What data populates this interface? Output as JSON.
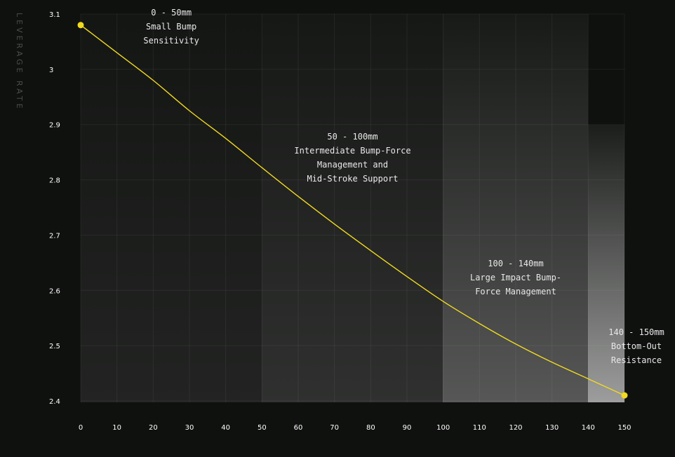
{
  "chart_data": {
    "type": "line",
    "title": "",
    "xlabel": "",
    "ylabel": "LEVERAGE RATE",
    "xlim": [
      0,
      150
    ],
    "ylim": [
      2.4,
      3.1
    ],
    "x_ticks": [
      "0",
      "10",
      "20",
      "30",
      "40",
      "50",
      "60",
      "70",
      "80",
      "90",
      "100",
      "110",
      "120",
      "130",
      "140",
      "150"
    ],
    "y_ticks": [
      "2.4",
      "2.5",
      "2.6",
      "2.7",
      "2.8",
      "2.9",
      "3",
      "3.1"
    ],
    "grid": true,
    "series": [
      {
        "x": [
          0,
          10,
          20,
          30,
          40,
          50,
          60,
          70,
          80,
          90,
          100,
          110,
          120,
          130,
          140,
          150
        ],
        "y": [
          3.08,
          3.03,
          2.98,
          2.925,
          2.875,
          2.822,
          2.77,
          2.72,
          2.672,
          2.625,
          2.58,
          2.54,
          2.503,
          2.47,
          2.44,
          2.41
        ],
        "color": "#f2da1f"
      }
    ],
    "zones": [
      {
        "from": 0,
        "to": 50,
        "lines": [
          "0 - 50mm",
          "Small Bump",
          "Sensitivity"
        ]
      },
      {
        "from": 50,
        "to": 100,
        "lines": [
          "50 - 100mm",
          "Intermediate Bump-Force",
          "Management and",
          "Mid-Stroke Support"
        ]
      },
      {
        "from": 100,
        "to": 140,
        "lines": [
          "100  - 140mm",
          "Large Impact Bump-",
          "Force Management"
        ]
      },
      {
        "from": 140,
        "to": 150,
        "lines": [
          "140 - 150mm",
          "Bottom-Out",
          "Resistance"
        ]
      }
    ],
    "endpoints": [
      {
        "x": 0,
        "y": 3.08
      },
      {
        "x": 150,
        "y": 2.41
      }
    ]
  },
  "colors": {
    "background": "#0f110f",
    "line": "#f2da1f"
  }
}
